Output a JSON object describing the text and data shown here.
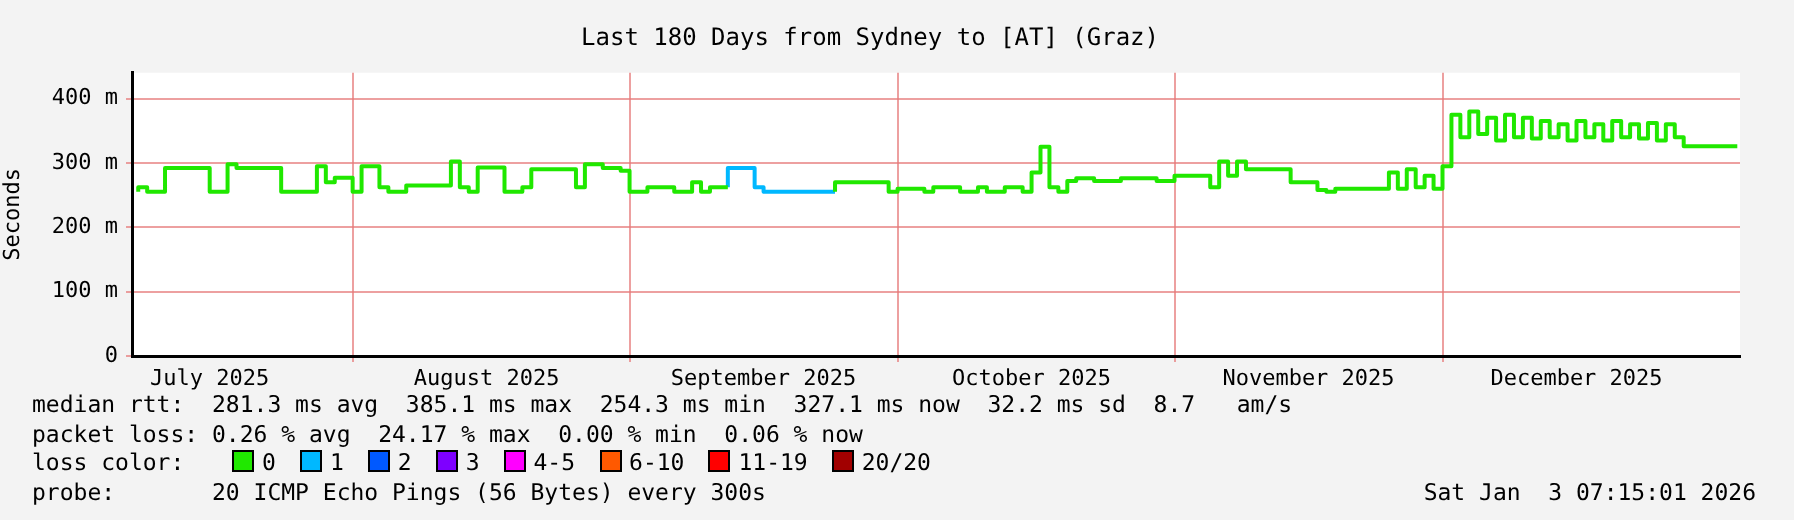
{
  "chart_data": {
    "type": "step",
    "title": "Last 180 Days from Sydney to [AT] (Graz)",
    "ylabel": "Seconds",
    "x": [
      "2025-07-08",
      "2025-07-09",
      "2025-07-11",
      "2025-07-16",
      "2025-07-18",
      "2025-07-19",
      "2025-07-24",
      "2025-07-28",
      "2025-07-29",
      "2025-07-30",
      "2025-08-01",
      "2025-08-02",
      "2025-08-04",
      "2025-08-05",
      "2025-08-07",
      "2025-08-12",
      "2025-08-13",
      "2025-08-14",
      "2025-08-15",
      "2025-08-18",
      "2025-08-20",
      "2025-08-21",
      "2025-08-26",
      "2025-08-27",
      "2025-08-29",
      "2025-08-31",
      "2025-09-01",
      "2025-09-03",
      "2025-09-06",
      "2025-09-08",
      "2025-09-09",
      "2025-09-10",
      "2025-09-12",
      "2025-09-15",
      "2025-09-16",
      "2025-09-24",
      "2025-09-30",
      "2025-10-01",
      "2025-10-04",
      "2025-10-05",
      "2025-10-08",
      "2025-10-10",
      "2025-10-11",
      "2025-10-13",
      "2025-10-15",
      "2025-10-16",
      "2025-10-17",
      "2025-10-18",
      "2025-10-19",
      "2025-10-20",
      "2025-10-21",
      "2025-10-23",
      "2025-10-26",
      "2025-10-30",
      "2025-11-01",
      "2025-11-05",
      "2025-11-06",
      "2025-11-07",
      "2025-11-08",
      "2025-11-09",
      "2025-11-14",
      "2025-11-17",
      "2025-11-18",
      "2025-11-19",
      "2025-11-25",
      "2025-11-26",
      "2025-11-27",
      "2025-11-28",
      "2025-11-29",
      "2025-11-30",
      "2025-12-01",
      "2025-12-02",
      "2025-12-03",
      "2025-12-04",
      "2025-12-05",
      "2025-12-06",
      "2025-12-07",
      "2025-12-08",
      "2025-12-09",
      "2025-12-10",
      "2025-12-11",
      "2025-12-12",
      "2025-12-13",
      "2025-12-14",
      "2025-12-15",
      "2025-12-16",
      "2025-12-17",
      "2025-12-18",
      "2025-12-19",
      "2025-12-20",
      "2025-12-21",
      "2025-12-22",
      "2025-12-23",
      "2025-12-24",
      "2025-12-25",
      "2025-12-26",
      "2025-12-27",
      "2025-12-28",
      "2025-12-29",
      "2026-01-03"
    ],
    "series": [
      {
        "name": "0",
        "color": "#20e800",
        "values": [
          255,
          262,
          255,
          292,
          255,
          298,
          292,
          255,
          295,
          270,
          277,
          255,
          295,
          262,
          255,
          265,
          302,
          262,
          255,
          293,
          255,
          262,
          290,
          262,
          298,
          292,
          288,
          255,
          262,
          255,
          270,
          255,
          262,
          null,
          null,
          255,
          270,
          255,
          260,
          255,
          262,
          255,
          262,
          255,
          262,
          255,
          285,
          325,
          262,
          255,
          272,
          276,
          272,
          276,
          272,
          280,
          262,
          302,
          280,
          302,
          290,
          270,
          258,
          255,
          260,
          285,
          260,
          290,
          262,
          280,
          260,
          295,
          375,
          340,
          380,
          345,
          370,
          335,
          375,
          340,
          370,
          338,
          365,
          340,
          360,
          335,
          365,
          340,
          360,
          335,
          365,
          340,
          360,
          338,
          362,
          335,
          360,
          340,
          326,
          326
        ]
      },
      {
        "name": "1",
        "color": "#00b8ff",
        "values": [
          null,
          null,
          null,
          null,
          null,
          null,
          null,
          null,
          null,
          null,
          null,
          null,
          null,
          null,
          null,
          null,
          null,
          null,
          null,
          null,
          null,
          null,
          null,
          null,
          null,
          null,
          null,
          null,
          null,
          null,
          null,
          null,
          262,
          292,
          262,
          255,
          null,
          null,
          null,
          null,
          null,
          null,
          null,
          null,
          null,
          null,
          null,
          null,
          null,
          null,
          null,
          null,
          null,
          null,
          null,
          null,
          null,
          null,
          null,
          null,
          null,
          null,
          null,
          null,
          null,
          null,
          null,
          null,
          null,
          null,
          null,
          null,
          null,
          null,
          null,
          null,
          null,
          null,
          null,
          null,
          null,
          null,
          null,
          null,
          null,
          null,
          null,
          null,
          null,
          null,
          null,
          null,
          null,
          null,
          null,
          null,
          null,
          null,
          null,
          null
        ]
      },
      {
        "name": "2",
        "color": "#0059ff",
        "values": [
          null,
          null,
          null,
          null,
          null,
          null,
          null,
          null,
          null,
          null,
          null,
          null,
          null,
          null,
          null,
          null,
          null,
          null,
          null,
          null,
          null,
          null,
          null,
          null,
          null,
          null,
          null,
          null,
          null,
          null,
          null,
          null,
          null,
          null,
          null,
          null,
          null,
          null,
          null,
          null,
          null,
          null,
          null,
          null,
          null,
          null,
          null,
          null,
          null,
          null,
          null,
          null,
          null,
          null,
          null,
          null,
          null,
          null,
          null,
          null,
          null,
          null,
          null,
          null,
          null,
          null,
          null,
          null,
          null,
          null,
          null,
          null,
          null,
          null,
          null,
          null,
          null,
          null,
          null,
          null,
          null,
          null,
          null,
          null,
          null,
          null,
          null,
          null,
          null,
          null,
          null,
          null,
          null,
          null,
          null,
          null,
          null,
          null,
          null,
          null
        ]
      },
      {
        "name": "3",
        "color": "#7e00ff",
        "values": [
          null,
          null,
          null,
          null,
          null,
          null,
          null,
          null,
          null,
          null,
          null,
          null,
          null,
          null,
          null,
          null,
          null,
          null,
          null,
          null,
          null,
          null,
          null,
          null,
          null,
          null,
          null,
          null,
          null,
          null,
          null,
          null,
          null,
          null,
          null,
          null,
          null,
          null,
          null,
          null,
          null,
          null,
          null,
          null,
          null,
          null,
          null,
          null,
          null,
          null,
          null,
          null,
          null,
          null,
          null,
          null,
          null,
          null,
          null,
          null,
          null,
          null,
          null,
          null,
          null,
          null,
          null,
          null,
          null,
          null,
          null,
          null,
          null,
          null,
          null,
          null,
          null,
          null,
          null,
          null,
          null,
          null,
          null,
          null,
          null,
          null,
          null,
          null,
          null,
          null,
          null,
          null,
          null,
          null,
          null,
          null,
          null,
          null,
          null,
          null
        ]
      },
      {
        "name": "4-5",
        "color": "#ff00ff",
        "values": [
          null,
          null,
          null,
          null,
          null,
          null,
          null,
          null,
          null,
          null,
          null,
          null,
          null,
          null,
          null,
          null,
          null,
          null,
          null,
          null,
          null,
          null,
          null,
          null,
          null,
          null,
          null,
          null,
          null,
          null,
          null,
          null,
          null,
          null,
          null,
          null,
          null,
          null,
          null,
          null,
          null,
          null,
          null,
          null,
          null,
          null,
          null,
          null,
          null,
          null,
          null,
          null,
          null,
          null,
          null,
          null,
          null,
          null,
          null,
          null,
          null,
          null,
          null,
          null,
          null,
          null,
          null,
          null,
          null,
          null,
          null,
          null,
          null,
          null,
          null,
          null,
          null,
          null,
          null,
          null,
          null,
          null,
          null,
          null,
          null,
          null,
          null,
          null,
          null,
          null,
          null,
          null,
          null,
          null,
          null,
          null,
          null,
          null,
          null,
          null
        ]
      },
      {
        "name": "6-10",
        "color": "#ff5900",
        "values": [
          null,
          null,
          null,
          null,
          null,
          null,
          null,
          null,
          null,
          null,
          null,
          null,
          null,
          null,
          null,
          null,
          null,
          null,
          null,
          null,
          null,
          null,
          null,
          null,
          null,
          null,
          null,
          null,
          null,
          null,
          null,
          null,
          null,
          null,
          null,
          null,
          null,
          null,
          null,
          null,
          null,
          null,
          null,
          null,
          null,
          null,
          null,
          null,
          null,
          null,
          null,
          null,
          null,
          null,
          null,
          null,
          null,
          null,
          null,
          null,
          null,
          null,
          null,
          null,
          null,
          null,
          null,
          null,
          null,
          null,
          null,
          null,
          null,
          null,
          null,
          null,
          null,
          null,
          null,
          null,
          null,
          null,
          null,
          null,
          null,
          null,
          null,
          null,
          null,
          null,
          null,
          null,
          null,
          null,
          null,
          null,
          null,
          null,
          null,
          null
        ]
      },
      {
        "name": "11-19",
        "color": "#ff0000",
        "values": [
          null,
          null,
          null,
          null,
          null,
          null,
          null,
          null,
          null,
          null,
          null,
          null,
          null,
          null,
          null,
          null,
          null,
          null,
          null,
          null,
          null,
          null,
          null,
          null,
          null,
          null,
          null,
          null,
          null,
          null,
          null,
          null,
          null,
          null,
          null,
          null,
          null,
          null,
          null,
          null,
          null,
          null,
          null,
          null,
          null,
          null,
          null,
          null,
          null,
          null,
          null,
          null,
          null,
          null,
          null,
          null,
          null,
          null,
          null,
          null,
          null,
          null,
          null,
          null,
          null,
          null,
          null,
          null,
          null,
          null,
          null,
          null,
          null,
          null,
          null,
          null,
          null,
          null,
          null,
          null,
          null,
          null,
          null,
          null,
          null,
          null,
          null,
          null,
          null,
          null,
          null,
          null,
          null,
          null,
          null,
          null,
          null,
          null,
          null,
          null
        ]
      },
      {
        "name": "20/20",
        "color": "#a10000",
        "values": [
          null,
          null,
          null,
          null,
          null,
          null,
          null,
          null,
          null,
          null,
          null,
          null,
          null,
          null,
          null,
          null,
          null,
          null,
          null,
          null,
          null,
          null,
          null,
          null,
          null,
          null,
          null,
          null,
          null,
          null,
          null,
          null,
          null,
          null,
          null,
          null,
          null,
          null,
          null,
          null,
          null,
          null,
          null,
          null,
          null,
          null,
          null,
          null,
          null,
          null,
          null,
          null,
          null,
          null,
          null,
          null,
          null,
          null,
          null,
          null,
          null,
          null,
          null,
          null,
          null,
          null,
          null,
          null,
          null,
          null,
          null,
          null,
          null,
          null,
          null,
          null,
          null,
          null,
          null,
          null,
          null,
          null,
          null,
          null,
          null,
          null,
          null,
          null,
          null,
          null,
          null,
          null,
          null,
          null,
          null,
          null,
          null,
          null,
          null,
          null
        ]
      }
    ],
    "xlim": [
      "2025-07-07T07:15",
      "2026-01-03T07:15"
    ],
    "xticks": [
      {
        "value": "2025-07-16",
        "label": "July 2025"
      },
      {
        "value": "2025-08-01",
        "label": null
      },
      {
        "value": "2025-08-16",
        "label": "August 2025"
      },
      {
        "value": "2025-09-01",
        "label": null
      },
      {
        "value": "2025-09-16",
        "label": "September 2025"
      },
      {
        "value": "2025-10-01",
        "label": null
      },
      {
        "value": "2025-10-16",
        "label": "October 2025"
      },
      {
        "value": "2025-11-01",
        "label": null
      },
      {
        "value": "2025-11-16",
        "label": "November 2025"
      },
      {
        "value": "2025-12-01",
        "label": null
      },
      {
        "value": "2025-12-16",
        "label": "December 2025"
      }
    ],
    "ylim": [
      0,
      440
    ],
    "yticks": [
      0,
      {
        "value": 100,
        "label": "100 m"
      },
      {
        "value": 200,
        "label": "200 m"
      },
      {
        "value": 300,
        "label": "300 m"
      },
      {
        "value": 400,
        "label": "400 m"
      }
    ],
    "grid": true,
    "legend": "bottom",
    "legend_title": "loss color:",
    "marker": "none",
    "line_style": "solid",
    "annotations": [
      "median rtt:  281.3 ms avg  385.1 ms max  254.3 ms min  327.1 ms now  32.2 ms sd  8.7   am/s",
      "packet loss: 0.26 % avg  24.17 % max  0.00 % min  0.06 % now",
      "probe:       20 ICMP Echo Pings (56 Bytes) every 300s",
      "Sat Jan  3 07:15:01 2026"
    ]
  }
}
